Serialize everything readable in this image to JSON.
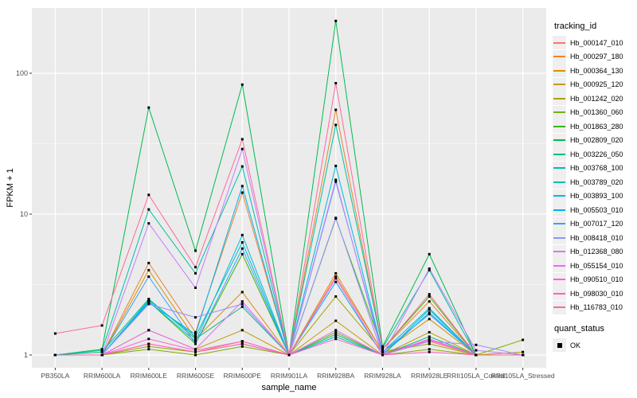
{
  "chart_data": {
    "type": "line",
    "title": "",
    "xlabel": "sample_name",
    "ylabel": "FPKM + 1",
    "yscale": "log10",
    "yticks": [
      1,
      10,
      100
    ],
    "yminor": [
      3.1623,
      31.623,
      316.23
    ],
    "ylim": [
      1,
      290
    ],
    "grid": "major+minor",
    "legend_position": "right",
    "point_shape": "filled-square",
    "categories": [
      "PB350LA",
      "RRIM600LA",
      "RRIM600LE",
      "RRIM600SE",
      "RRIM600PE",
      "RRIM901LA",
      "RRIM928BA",
      "RRIM928LA",
      "RRIM928LE",
      "RRII105LA_Control",
      "RRII105LA_Stressed"
    ],
    "series": [
      {
        "name": "Hb_000147_010",
        "color": "#F8766D",
        "values": [
          1,
          1,
          1.2,
          1.05,
          1.25,
          1,
          3.6,
          1.05,
          1.25,
          1,
          1
        ]
      },
      {
        "name": "Hb_000297_180",
        "color": "#EA8331",
        "values": [
          1,
          1,
          4.5,
          1.45,
          14.2,
          1,
          55,
          1.1,
          2.4,
          1,
          1
        ]
      },
      {
        "name": "Hb_000364_130",
        "color": "#D89000",
        "values": [
          1,
          1,
          4.0,
          1.3,
          2.8,
          1,
          3.8,
          1.05,
          1.8,
          1,
          1
        ]
      },
      {
        "name": "Hb_000925_120",
        "color": "#C09B00",
        "values": [
          1,
          1,
          1.5,
          1.1,
          1.5,
          1,
          1.75,
          1,
          1.45,
          1,
          1
        ]
      },
      {
        "name": "Hb_001242_020",
        "color": "#A3A500",
        "values": [
          1,
          1,
          1.15,
          1.05,
          1.2,
          1,
          2.6,
          1.05,
          1.2,
          1,
          1.05
        ]
      },
      {
        "name": "Hb_001360_060",
        "color": "#7CAE00",
        "values": [
          1,
          1,
          1.1,
          1,
          1.15,
          1,
          1.45,
          1,
          1.1,
          1,
          1.28
        ]
      },
      {
        "name": "Hb_001863_280",
        "color": "#39B600",
        "values": [
          1,
          1,
          2.4,
          1.2,
          5.2,
          1,
          9.3,
          1.1,
          2.6,
          1,
          1
        ]
      },
      {
        "name": "Hb_002809_020",
        "color": "#00BB4E",
        "values": [
          1,
          1.1,
          57,
          5.5,
          83,
          1,
          235,
          1.15,
          5.2,
          1,
          1
        ]
      },
      {
        "name": "Hb_003226_050",
        "color": "#00BF7D",
        "values": [
          1,
          1.05,
          2.5,
          1.3,
          2.2,
          1,
          1.4,
          1,
          1.35,
          1,
          1
        ]
      },
      {
        "name": "Hb_003768_100",
        "color": "#00C1A3",
        "values": [
          1,
          1.08,
          10.8,
          3.8,
          21.8,
          1,
          43,
          1.12,
          4.0,
          1,
          1
        ]
      },
      {
        "name": "Hb_003789_020",
        "color": "#00BFC4",
        "values": [
          1,
          1,
          2.45,
          1.35,
          6.3,
          1,
          1.35,
          1,
          2.1,
          1,
          1
        ]
      },
      {
        "name": "Hb_003893_100",
        "color": "#00BAE0",
        "values": [
          1,
          1,
          2.4,
          1.25,
          7.1,
          1,
          22,
          1.05,
          2.15,
          1,
          1
        ]
      },
      {
        "name": "Hb_005503_010",
        "color": "#00B0F6",
        "values": [
          1,
          1,
          2.35,
          1.4,
          15.8,
          1,
          3.3,
          1,
          2.0,
          1,
          1
        ]
      },
      {
        "name": "Hb_007017_120",
        "color": "#35A2FF",
        "values": [
          1,
          1,
          3.6,
          1.2,
          5.7,
          1,
          17,
          1.05,
          1.95,
          1,
          1
        ]
      },
      {
        "name": "Hb_008418_010",
        "color": "#9590FF",
        "values": [
          1,
          1,
          2.3,
          1.85,
          2.3,
          1,
          9.4,
          1,
          1.25,
          1.18,
          1
        ]
      },
      {
        "name": "Hb_012368_080",
        "color": "#C77CFF",
        "values": [
          1,
          1,
          8.6,
          3.0,
          29,
          1,
          17.5,
          1,
          4.1,
          1.08,
          1
        ]
      },
      {
        "name": "Hb_055154_010",
        "color": "#E76BF3",
        "values": [
          1,
          1,
          1.5,
          1.1,
          2.4,
          1,
          1.5,
          1,
          1.3,
          1,
          1
        ]
      },
      {
        "name": "Hb_090510_010",
        "color": "#FA62DB",
        "values": [
          1,
          1,
          1.3,
          1.08,
          1.25,
          1,
          3.5,
          1,
          1.28,
          1,
          1
        ]
      },
      {
        "name": "Hb_098030_010",
        "color": "#FF62BC",
        "values": [
          1,
          1,
          1.2,
          1.05,
          1.2,
          1,
          1.3,
          1,
          1.05,
          1,
          1
        ]
      },
      {
        "name": "Hb_116783_010",
        "color": "#FF6A98",
        "values": [
          1.42,
          1.62,
          13.7,
          4.2,
          34,
          1,
          85,
          1.1,
          2.7,
          1,
          1
        ]
      }
    ]
  },
  "legend": {
    "tracking_title": "tracking_id",
    "quant_title": "quant_status",
    "quant_items": [
      {
        "label": "OK"
      }
    ]
  },
  "colors": {
    "panel_bg": "#EBEBEB",
    "grid_major": "#FFFFFF",
    "grid_minor": "#FFFFFF",
    "point": "#000000",
    "tick": "#333333",
    "tick_label": "#4D4D4D",
    "axis_title": "#000000",
    "legend_key_bg": "#EFEFEF"
  }
}
